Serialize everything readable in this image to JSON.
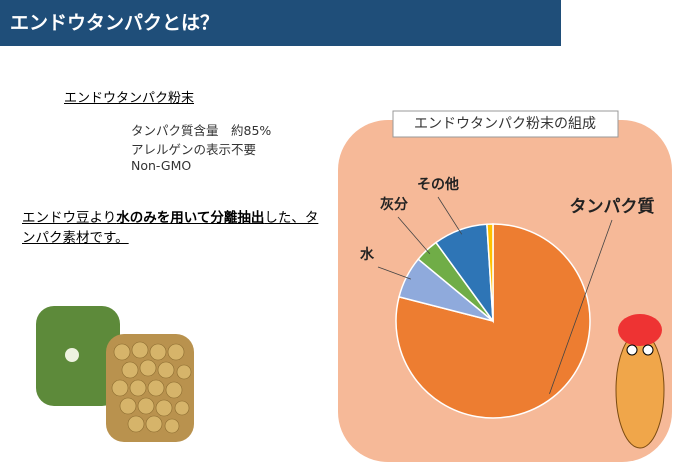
{
  "header": {
    "title": "エンドウタンパクとは？"
  },
  "product": {
    "title": "エンドウタンパク粉末",
    "features": [
      "タンパク質含量　約85%",
      "アレルゲンの表示不要",
      "Non-GMO"
    ]
  },
  "description": {
    "parts": [
      "エンドウ豆より",
      "水のみを用いて分離抽出",
      "した、タンパク素材です。"
    ]
  },
  "chart_data": {
    "type": "pie",
    "title": "エンドウタンパク粉末の組成",
    "categories": [
      "タンパク質",
      "水",
      "灰分",
      "その他",
      null
    ],
    "values": [
      79,
      7,
      4,
      9,
      1
    ],
    "colors": [
      "#ed7d31",
      "#8faadc",
      "#70ad47",
      "#2e75b6",
      "#ffc000"
    ]
  }
}
